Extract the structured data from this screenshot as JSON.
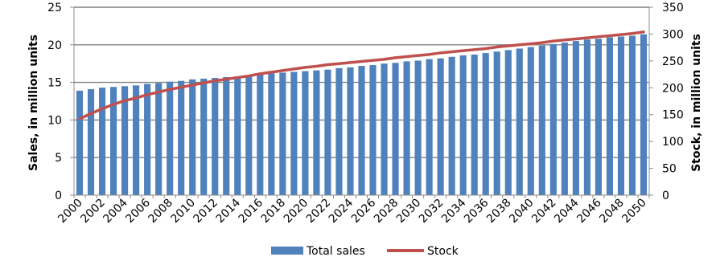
{
  "chart_data": {
    "type": "bar",
    "x": [
      2000,
      2001,
      2002,
      2003,
      2004,
      2005,
      2006,
      2007,
      2008,
      2009,
      2010,
      2011,
      2012,
      2013,
      2014,
      2015,
      2016,
      2017,
      2018,
      2019,
      2020,
      2021,
      2022,
      2023,
      2024,
      2025,
      2026,
      2027,
      2028,
      2029,
      2030,
      2031,
      2032,
      2033,
      2034,
      2035,
      2036,
      2037,
      2038,
      2039,
      2040,
      2041,
      2042,
      2043,
      2044,
      2045,
      2046,
      2047,
      2048,
      2049,
      2050
    ],
    "x_tick_labels": [
      "2000",
      "2002",
      "2004",
      "2006",
      "2008",
      "2010",
      "2012",
      "2014",
      "2016",
      "2018",
      "2020",
      "2022",
      "2024",
      "2026",
      "2028",
      "2030",
      "2032",
      "2034",
      "2036",
      "2038",
      "2040",
      "2042",
      "2044",
      "2046",
      "2048",
      "2050"
    ],
    "series": [
      {
        "name": "Total sales",
        "type": "bar",
        "axis": "left",
        "color": "#4f81bd",
        "values": [
          13.9,
          14.1,
          14.3,
          14.4,
          14.5,
          14.6,
          14.8,
          14.9,
          15.1,
          15.2,
          15.4,
          15.5,
          15.6,
          15.7,
          15.8,
          15.9,
          16.1,
          16.2,
          16.3,
          16.4,
          16.5,
          16.6,
          16.7,
          16.9,
          17.0,
          17.2,
          17.3,
          17.5,
          17.6,
          17.8,
          17.9,
          18.1,
          18.2,
          18.4,
          18.6,
          18.7,
          18.9,
          19.1,
          19.3,
          19.5,
          19.7,
          19.9,
          20.1,
          20.3,
          20.5,
          20.7,
          20.8,
          21.0,
          21.1,
          21.2,
          21.4
        ]
      },
      {
        "name": "Stock",
        "type": "line",
        "axis": "right",
        "color": "#c0504d",
        "values": [
          142,
          152,
          161,
          169,
          176,
          181,
          187,
          192,
          197,
          201,
          205,
          209,
          213,
          216,
          219,
          222,
          226,
          229,
          232,
          235,
          238,
          240,
          243,
          245,
          247,
          249,
          251,
          253,
          256,
          258,
          260,
          262,
          265,
          267,
          269,
          271,
          273,
          276,
          278,
          280,
          282,
          284,
          287,
          289,
          291,
          293,
          295,
          297,
          299,
          301,
          304
        ]
      }
    ],
    "ylabel": "Sales, in million units",
    "ylim": [
      0,
      25
    ],
    "y_ticks": [
      "0",
      "5",
      "10",
      "15",
      "20",
      "25"
    ],
    "y2label": "Stock, in million units",
    "y2lim": [
      0,
      350
    ],
    "y2_ticks": [
      "0",
      "50",
      "100",
      "150",
      "200",
      "250",
      "300",
      "350"
    ],
    "grid": true,
    "legend_position": "bottom",
    "gridline_color": "#808080"
  }
}
